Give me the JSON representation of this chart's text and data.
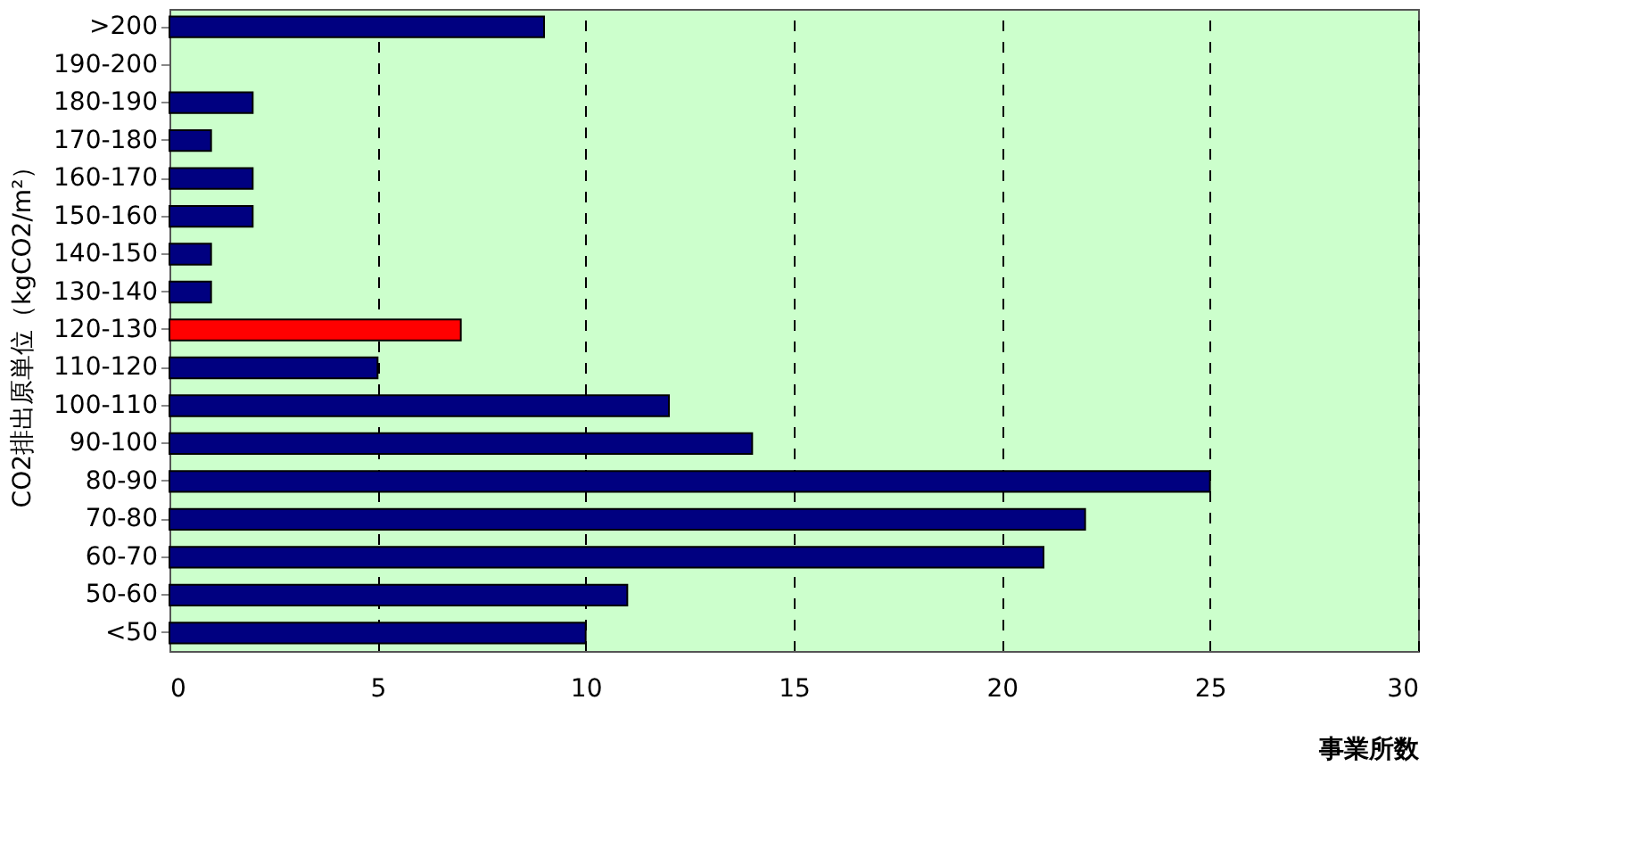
{
  "chart_data": {
    "type": "bar",
    "orientation": "horizontal",
    "categories": [
      ">200",
      "190-200",
      "180-190",
      "170-180",
      "160-170",
      "150-160",
      "140-150",
      "130-140",
      "120-130",
      "110-120",
      "100-110",
      "90-100",
      "80-90",
      "70-80",
      "60-70",
      "50-60",
      "<50"
    ],
    "values": [
      9,
      0,
      2,
      1,
      2,
      2,
      1,
      1,
      7,
      5,
      12,
      14,
      25,
      22,
      21,
      11,
      10
    ],
    "colors": [
      "#000080",
      "#000080",
      "#000080",
      "#000080",
      "#000080",
      "#000080",
      "#000080",
      "#000080",
      "#ff0000",
      "#000080",
      "#000080",
      "#000080",
      "#000080",
      "#000080",
      "#000080",
      "#000080",
      "#000080"
    ],
    "xlabel": "事業所数",
    "ylabel": "CO2排出原単位（kgCO2/m²）",
    "xlim": [
      0,
      30
    ],
    "xticks": [
      0,
      5,
      10,
      15,
      20,
      25,
      30
    ],
    "grid": "x"
  }
}
